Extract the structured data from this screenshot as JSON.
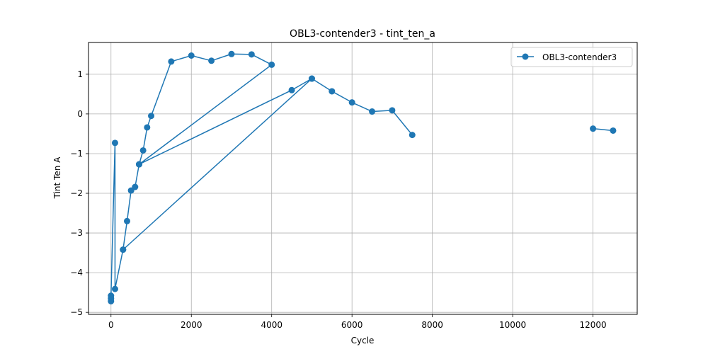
{
  "chart_data": {
    "type": "line",
    "title": "OBL3-contender3 - tint_ten_a",
    "xlabel": "Cycle",
    "ylabel": "Tint Ten A",
    "xlim": [
      -560,
      13100
    ],
    "ylim": [
      -5.05,
      1.8
    ],
    "xticks": [
      0,
      2000,
      4000,
      6000,
      8000,
      10000,
      12000
    ],
    "yticks": [
      -5,
      -4,
      -3,
      -2,
      -1,
      0,
      1
    ],
    "xtick_labels": [
      "0",
      "2000",
      "4000",
      "6000",
      "8000",
      "10000",
      "12000"
    ],
    "ytick_labels": [
      "−5",
      "−4",
      "−3",
      "−2",
      "−1",
      "0",
      "1"
    ],
    "grid": true,
    "legend_position": "top-right",
    "series": [
      {
        "name": "OBL3-contender3",
        "color": "#1f77b4",
        "segments": [
          [
            [
              0,
              -4.72
            ],
            [
              0,
              -4.65
            ],
            [
              0,
              -4.58
            ],
            [
              100,
              -0.73
            ],
            [
              100,
              -4.41
            ],
            [
              300,
              -3.42
            ],
            [
              400,
              -2.7
            ],
            [
              500,
              -1.93
            ],
            [
              600,
              -1.84
            ],
            [
              700,
              -1.27
            ],
            [
              800,
              -0.92
            ],
            [
              900,
              -0.34
            ],
            [
              1000,
              -0.05
            ],
            [
              1500,
              1.32
            ],
            [
              2000,
              1.47
            ],
            [
              2500,
              1.34
            ],
            [
              3000,
              1.51
            ],
            [
              3500,
              1.5
            ],
            [
              4000,
              1.24
            ],
            [
              700,
              -1.27
            ],
            [
              4500,
              0.6
            ],
            [
              5000,
              0.89
            ],
            [
              300,
              -3.42
            ],
            [
              5000,
              0.89
            ],
            [
              5500,
              0.57
            ],
            [
              6000,
              0.29
            ],
            [
              6500,
              0.06
            ],
            [
              7000,
              0.09
            ],
            [
              7500,
              -0.53
            ]
          ],
          [
            [
              12000,
              -0.37
            ],
            [
              12500,
              -0.42
            ]
          ]
        ]
      }
    ]
  }
}
